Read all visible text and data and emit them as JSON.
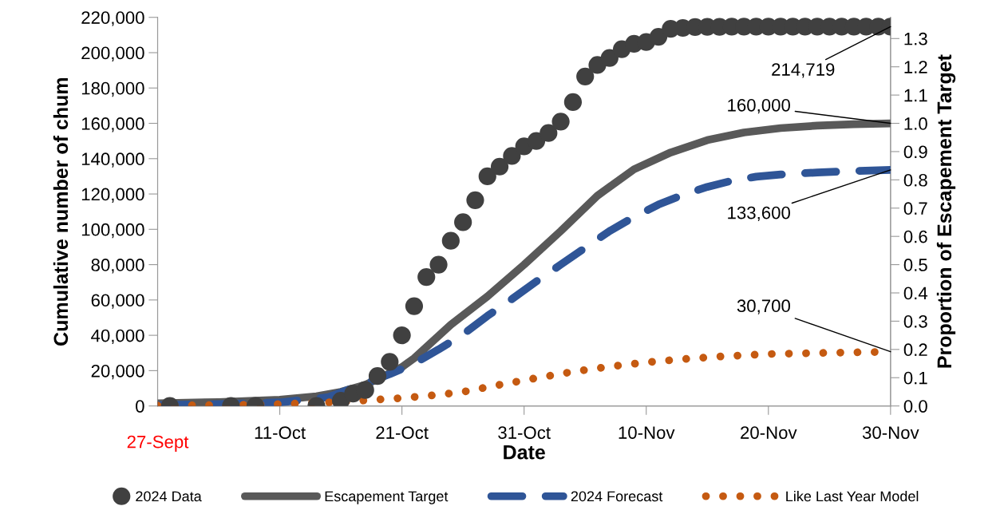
{
  "chart_data": {
    "type": "line",
    "xlabel": "Date",
    "ylabel": "Cumulative number of chum",
    "y2label": "Proportion of Escapement Target",
    "xlim": [
      "2024-10-01",
      "2024-11-30"
    ],
    "xticks": [
      {
        "value": "2024-10-11",
        "label": "11-Oct"
      },
      {
        "value": "2024-10-21",
        "label": "21-Oct"
      },
      {
        "value": "2024-10-31",
        "label": "31-Oct"
      },
      {
        "value": "2024-11-10",
        "label": "10-Nov"
      },
      {
        "value": "2024-11-20",
        "label": "20-Nov"
      },
      {
        "value": "2024-11-30",
        "label": "30-Nov"
      }
    ],
    "ylim": [
      0,
      220000
    ],
    "yticks": [
      {
        "value": 0,
        "label": "0"
      },
      {
        "value": 20000,
        "label": "20,000"
      },
      {
        "value": 40000,
        "label": "40,000"
      },
      {
        "value": 60000,
        "label": "60,000"
      },
      {
        "value": 80000,
        "label": "80,000"
      },
      {
        "value": 100000,
        "label": "100,000"
      },
      {
        "value": 120000,
        "label": "120,000"
      },
      {
        "value": 140000,
        "label": "140,000"
      },
      {
        "value": 160000,
        "label": "160,000"
      },
      {
        "value": 180000,
        "label": "180,000"
      },
      {
        "value": 200000,
        "label": "200,000"
      },
      {
        "value": 220000,
        "label": "220,000"
      }
    ],
    "y2lim": [
      0,
      1.375
    ],
    "y2ticks": [
      {
        "value": 0,
        "label": "0.0"
      },
      {
        "value": 0.1,
        "label": "0.1"
      },
      {
        "value": 0.2,
        "label": "0.2"
      },
      {
        "value": 0.3,
        "label": "0.3"
      },
      {
        "value": 0.4,
        "label": "0.4"
      },
      {
        "value": 0.5,
        "label": "0.5"
      },
      {
        "value": 0.6,
        "label": "0.6"
      },
      {
        "value": 0.7,
        "label": "0.7"
      },
      {
        "value": 0.8,
        "label": "0.8"
      },
      {
        "value": 0.9,
        "label": "0.9"
      },
      {
        "value": 1.0,
        "label": "1.0"
      },
      {
        "value": 1.1,
        "label": "1.1"
      },
      {
        "value": 1.2,
        "label": "1.2"
      },
      {
        "value": 1.3,
        "label": "1.3"
      }
    ],
    "grid": false,
    "legend": "bottom",
    "series": [
      {
        "name": "2024 Data",
        "type": "scatter",
        "marker": "circle",
        "color": "#404040",
        "x": [
          "2024-10-02",
          "2024-10-07",
          "2024-10-09",
          "2024-10-14",
          "2024-10-16",
          "2024-10-17",
          "2024-10-18",
          "2024-10-19",
          "2024-10-20",
          "2024-10-21",
          "2024-10-22",
          "2024-10-23",
          "2024-10-24",
          "2024-10-25",
          "2024-10-26",
          "2024-10-27",
          "2024-10-28",
          "2024-10-29",
          "2024-10-30",
          "2024-10-31",
          "2024-11-01",
          "2024-11-02",
          "2024-11-03",
          "2024-11-04",
          "2024-11-05",
          "2024-11-06",
          "2024-11-07",
          "2024-11-08",
          "2024-11-09",
          "2024-11-10",
          "2024-11-11",
          "2024-11-12",
          "2024-11-13",
          "2024-11-14",
          "2024-11-15",
          "2024-11-16",
          "2024-11-17",
          "2024-11-18",
          "2024-11-19",
          "2024-11-20",
          "2024-11-21",
          "2024-11-22",
          "2024-11-23",
          "2024-11-24",
          "2024-11-25",
          "2024-11-26",
          "2024-11-27",
          "2024-11-28",
          "2024-11-29",
          "2024-11-30"
        ],
        "values": [
          0,
          0,
          0,
          0,
          3000,
          7000,
          9000,
          17000,
          25000,
          40000,
          56500,
          73000,
          80000,
          93500,
          104000,
          116500,
          130000,
          135500,
          141500,
          147000,
          150000,
          154500,
          161000,
          172000,
          186500,
          193000,
          197000,
          202000,
          205000,
          206000,
          209000,
          213500,
          214000,
          214500,
          214600,
          214600,
          214700,
          214700,
          214700,
          214700,
          214700,
          214700,
          214700,
          214700,
          214700,
          214700,
          214700,
          214700,
          214700,
          214719
        ]
      },
      {
        "name": "Escapement Target",
        "line_style": "solid",
        "color": "#595959",
        "x": [
          "2024-10-01",
          "2024-10-06",
          "2024-10-11",
          "2024-10-14",
          "2024-10-16",
          "2024-10-18",
          "2024-10-20",
          "2024-10-21",
          "2024-10-22",
          "2024-10-25",
          "2024-10-28",
          "2024-10-31",
          "2024-11-03",
          "2024-11-06",
          "2024-11-09",
          "2024-11-12",
          "2024-11-15",
          "2024-11-18",
          "2024-11-21",
          "2024-11-24",
          "2024-11-27",
          "2024-11-30"
        ],
        "values": [
          1500,
          2200,
          3500,
          5500,
          8000,
          12000,
          18500,
          22000,
          27000,
          46000,
          62000,
          80000,
          99000,
          119000,
          134000,
          143500,
          150500,
          154800,
          157300,
          158700,
          159500,
          160000
        ]
      },
      {
        "name": "2024 Forecast",
        "line_style": "dashed",
        "color": "#2F5597",
        "x": [
          "2024-10-01",
          "2024-10-06",
          "2024-10-11",
          "2024-10-15",
          "2024-10-20",
          "2024-10-22",
          "2024-10-24",
          "2024-10-26",
          "2024-10-28",
          "2024-10-30",
          "2024-11-01",
          "2024-11-03",
          "2024-11-05",
          "2024-11-07",
          "2024-11-09",
          "2024-11-11",
          "2024-11-13",
          "2024-11-15",
          "2024-11-17",
          "2024-11-19",
          "2024-11-21",
          "2024-11-24",
          "2024-11-27",
          "2024-11-30"
        ],
        "values": [
          500,
          1000,
          2000,
          5000,
          18000,
          24000,
          32000,
          40500,
          51000,
          60500,
          70500,
          80000,
          89500,
          99000,
          107000,
          114000,
          119500,
          124000,
          127500,
          129800,
          131000,
          132200,
          133000,
          133600
        ]
      },
      {
        "name": "Like Last Year Model",
        "line_style": "dotted",
        "color": "#C55A11",
        "x": [
          "2024-10-01",
          "2024-10-06",
          "2024-10-11",
          "2024-10-16",
          "2024-10-21",
          "2024-10-24",
          "2024-10-26",
          "2024-10-29",
          "2024-11-01",
          "2024-11-04",
          "2024-11-07",
          "2024-11-10",
          "2024-11-13",
          "2024-11-16",
          "2024-11-20",
          "2024-11-25",
          "2024-11-30"
        ],
        "values": [
          200,
          500,
          1000,
          2300,
          4500,
          6300,
          8000,
          12000,
          15800,
          19400,
          22300,
          24700,
          26500,
          28000,
          29400,
          30100,
          30700
        ]
      }
    ],
    "annotations": [
      {
        "text": "214,719",
        "x": "2024-11-30",
        "y": 214719
      },
      {
        "text": "160,000",
        "x": "2024-11-30",
        "y": 160000
      },
      {
        "text": "133,600",
        "x": "2024-11-30",
        "y": 133600
      },
      {
        "text": "30,700",
        "x": "2024-11-30",
        "y": 30700
      },
      "27-Sept"
    ]
  }
}
